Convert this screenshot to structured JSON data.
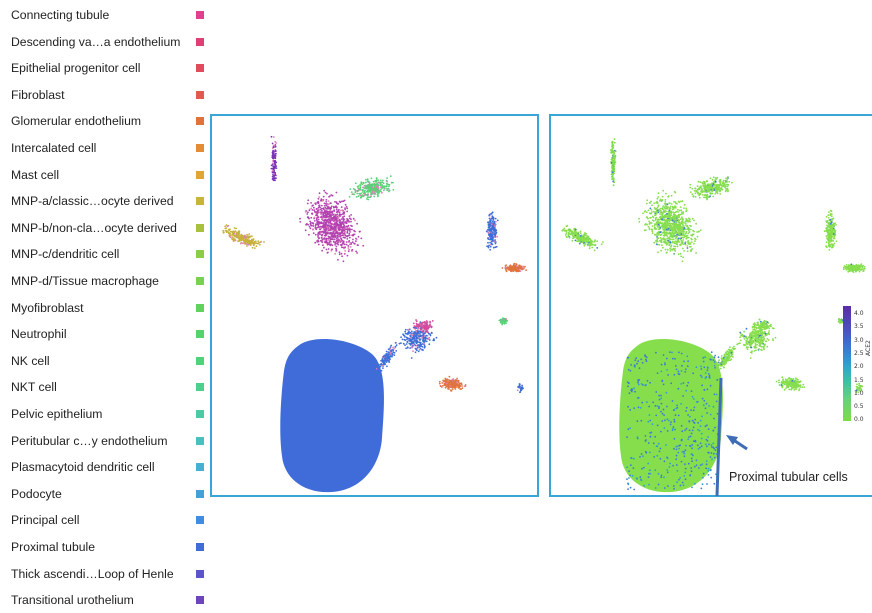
{
  "legend": {
    "items": [
      {
        "label": "Connecting tubule",
        "color": "#e0408f"
      },
      {
        "label": "Descending va…a endothelium",
        "color": "#e03f76"
      },
      {
        "label": "Epithelial progenitor cell",
        "color": "#e24a5e"
      },
      {
        "label": "Fibroblast",
        "color": "#e25a4f"
      },
      {
        "label": "Glomerular endothelium",
        "color": "#e0733c"
      },
      {
        "label": "Intercalated cell",
        "color": "#e48b35"
      },
      {
        "label": "Mast cell",
        "color": "#dfa635"
      },
      {
        "label": "MNP-a/classic…ocyte derived",
        "color": "#c8b436"
      },
      {
        "label": "MNP-b/non-cla…ocyte derived",
        "color": "#a8c23e"
      },
      {
        "label": "MNP-c/dendritic cell",
        "color": "#8ccc47"
      },
      {
        "label": "MNP-d/Tissue macrophage",
        "color": "#78d153"
      },
      {
        "label": "Myofibroblast",
        "color": "#62d25f"
      },
      {
        "label": "Neutrophil",
        "color": "#55d36b"
      },
      {
        "label": "NK cell",
        "color": "#4ed27a"
      },
      {
        "label": "NKT cell",
        "color": "#4bd08d"
      },
      {
        "label": "Pelvic epithelium",
        "color": "#4ccaa5"
      },
      {
        "label": "Peritubular c…y endothelium",
        "color": "#48c0bf"
      },
      {
        "label": "Plasmacytoid dendritic cell",
        "color": "#46b0d3"
      },
      {
        "label": "Podocyte",
        "color": "#44a0d8"
      },
      {
        "label": "Principal cell",
        "color": "#3f8ce0"
      },
      {
        "label": "Proximal tubule",
        "color": "#3f6cd8"
      },
      {
        "label": "Thick ascendi…Loop of Henle",
        "color": "#5b55c9"
      },
      {
        "label": "Transitional urothelium",
        "color": "#6c45bd"
      }
    ]
  },
  "colorbar": {
    "title": "ACE2",
    "ticks": [
      "4.0",
      "3.5",
      "3.0",
      "2.5",
      "2.0",
      "1.5",
      "1.0",
      "0.5",
      "0.0"
    ]
  },
  "annotation": {
    "text": "Proximal tubular cells"
  },
  "chart_data": [
    {
      "type": "scatter",
      "title": "",
      "colored_by": "cell type",
      "clusters": [
        "Transitional urothelium",
        "Thick ascendi…Loop of Henle",
        "MNP-a/classic…ocyte derived",
        "Intercalated cell",
        "Proximal tubule",
        "Podocyte",
        "Myofibroblast"
      ]
    },
    {
      "type": "scatter",
      "title": "",
      "colored_by": "ACE2",
      "colorscale_range": [
        0.0,
        4.0
      ],
      "colors": {
        "low": "#7ddb4a",
        "high": "#5a2ca8"
      }
    }
  ],
  "panel_color": "#3aa6d8",
  "arrow_color": "#3f6db5"
}
